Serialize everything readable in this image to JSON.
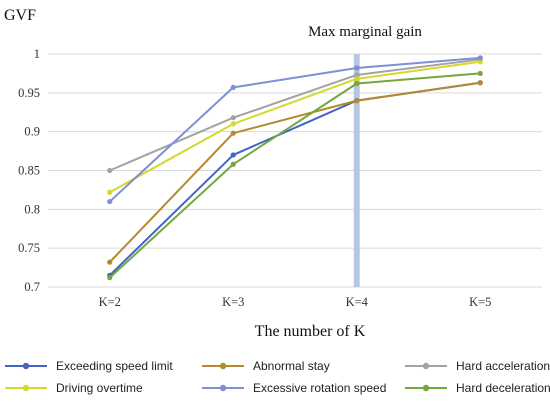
{
  "chart_data": {
    "type": "line",
    "title": "",
    "ylabel": "GVF",
    "xlabel": "The number of K",
    "categories": [
      "K=2",
      "K=3",
      "K=4",
      "K=5"
    ],
    "ylim": [
      0.7,
      1.0
    ],
    "yticks": [
      0.7,
      0.75,
      0.8,
      0.85,
      0.9,
      0.95,
      1
    ],
    "ytick_labels": [
      "0.7",
      "0.75",
      "0.8",
      "0.85",
      "0.9",
      "0.95",
      "1"
    ],
    "grid": true,
    "legend": "bottom",
    "annotation": {
      "text": "Max marginal gain",
      "x_category": "K=4",
      "color": "#b8c6e6"
    },
    "series": [
      {
        "name": "Exceeding speed limit",
        "color": "#4464c2",
        "values": [
          0.715,
          0.87,
          0.94,
          0.963
        ]
      },
      {
        "name": "Abnormal stay",
        "color": "#b48a2e",
        "values": [
          0.732,
          0.898,
          0.94,
          0.963
        ]
      },
      {
        "name": "Hard acceleration",
        "color": "#a3a3a3",
        "values": [
          0.85,
          0.918,
          0.973,
          0.993
        ]
      },
      {
        "name": "Driving overtime",
        "color": "#d4d92a",
        "values": [
          0.822,
          0.91,
          0.968,
          0.99
        ]
      },
      {
        "name": "Excessive rotation speed",
        "color": "#7d8fd6",
        "values": [
          0.81,
          0.957,
          0.982,
          0.995
        ]
      },
      {
        "name": "Hard deceleration",
        "color": "#72a83e",
        "values": [
          0.712,
          0.858,
          0.962,
          0.975
        ]
      }
    ]
  }
}
